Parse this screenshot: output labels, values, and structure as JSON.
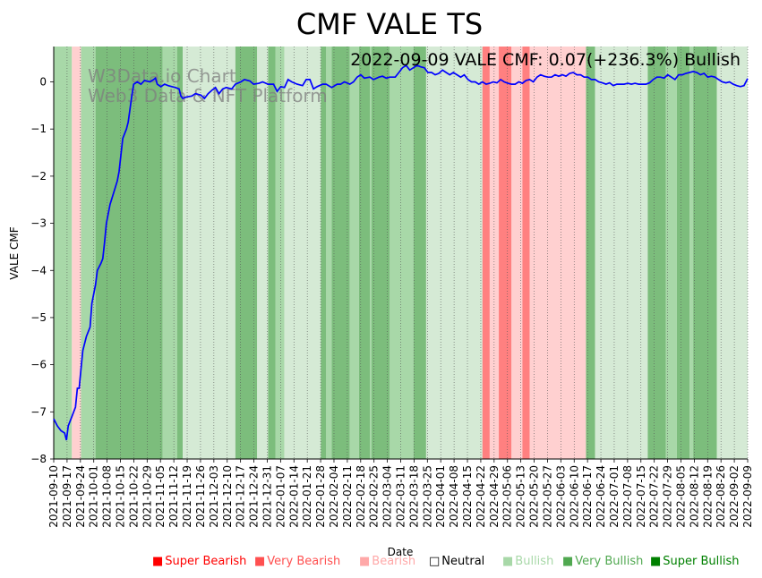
{
  "chart_data": {
    "type": "line",
    "title": "CMF VALE TS",
    "annotation": "2022-09-09 VALE CMF: 0.07(+236.3%) Bullish",
    "watermark": [
      "W3Data.io Chart",
      "Web3 Data & NFT Platform"
    ],
    "xlabel": "Date",
    "ylabel": "VALE CMF",
    "ylim": [
      -8.0,
      0.75
    ],
    "yticks": [
      0,
      -1,
      -2,
      -3,
      -4,
      -5,
      -6,
      -7,
      -8
    ],
    "xlim_days": [
      0,
      364
    ],
    "x_tick_start": "2021-09-10",
    "x_tick_labels": [
      "2021-09-10",
      "2021-09-17",
      "2021-09-24",
      "2021-10-01",
      "2021-10-08",
      "2021-10-15",
      "2021-10-22",
      "2021-10-29",
      "2021-11-05",
      "2021-11-12",
      "2021-11-19",
      "2021-11-26",
      "2021-12-03",
      "2021-12-10",
      "2021-12-17",
      "2021-12-24",
      "2021-12-31",
      "2022-01-07",
      "2022-01-14",
      "2022-01-21",
      "2022-01-28",
      "2022-02-04",
      "2022-02-11",
      "2022-02-18",
      "2022-02-25",
      "2022-03-04",
      "2022-03-11",
      "2022-03-18",
      "2022-03-25",
      "2022-04-01",
      "2022-04-08",
      "2022-04-15",
      "2022-04-22",
      "2022-04-29",
      "2022-05-06",
      "2022-05-13",
      "2022-05-20",
      "2022-05-27",
      "2022-06-03",
      "2022-06-10",
      "2022-06-17",
      "2022-06-24",
      "2022-07-01",
      "2022-07-08",
      "2022-07-15",
      "2022-07-22",
      "2022-07-29",
      "2022-08-05",
      "2022-08-12",
      "2022-08-19",
      "2022-08-26",
      "2022-09-02",
      "2022-09-09"
    ],
    "series": [
      {
        "name": "VALE CMF",
        "color": "#0000ff",
        "points": [
          [
            0,
            -7.15
          ],
          [
            2,
            -7.3
          ],
          [
            4,
            -7.4
          ],
          [
            6,
            -7.45
          ],
          [
            7,
            -7.6
          ],
          [
            8,
            -7.3
          ],
          [
            10,
            -7.1
          ],
          [
            12,
            -6.9
          ],
          [
            13,
            -6.5
          ],
          [
            14,
            -6.5
          ],
          [
            15,
            -6.1
          ],
          [
            16,
            -5.7
          ],
          [
            18,
            -5.4
          ],
          [
            20,
            -5.2
          ],
          [
            21,
            -4.7
          ],
          [
            23,
            -4.3
          ],
          [
            24,
            -4.0
          ],
          [
            26,
            -3.85
          ],
          [
            27,
            -3.75
          ],
          [
            28,
            -3.4
          ],
          [
            29,
            -3.0
          ],
          [
            31,
            -2.6
          ],
          [
            33,
            -2.35
          ],
          [
            35,
            -2.1
          ],
          [
            36,
            -1.9
          ],
          [
            38,
            -1.2
          ],
          [
            40,
            -1.0
          ],
          [
            41,
            -0.85
          ],
          [
            43,
            -0.3
          ],
          [
            44,
            -0.05
          ],
          [
            46,
            0.0
          ],
          [
            48,
            -0.05
          ],
          [
            50,
            0.03
          ],
          [
            53,
            0.0
          ],
          [
            55,
            0.05
          ],
          [
            56,
            0.08
          ],
          [
            57,
            -0.05
          ],
          [
            59,
            -0.1
          ],
          [
            61,
            -0.05
          ],
          [
            63,
            -0.08
          ],
          [
            65,
            -0.1
          ],
          [
            67,
            -0.12
          ],
          [
            69,
            -0.15
          ],
          [
            70,
            -0.3
          ],
          [
            71,
            -0.35
          ],
          [
            73,
            -0.32
          ],
          [
            76,
            -0.3
          ],
          [
            78,
            -0.25
          ],
          [
            81,
            -0.28
          ],
          [
            83,
            -0.35
          ],
          [
            85,
            -0.25
          ],
          [
            87,
            -0.18
          ],
          [
            89,
            -0.12
          ],
          [
            91,
            -0.25
          ],
          [
            93,
            -0.15
          ],
          [
            95,
            -0.12
          ],
          [
            98,
            -0.15
          ],
          [
            100,
            -0.05
          ],
          [
            103,
            0.0
          ],
          [
            105,
            0.05
          ],
          [
            108,
            0.02
          ],
          [
            110,
            -0.05
          ],
          [
            113,
            -0.03
          ],
          [
            115,
            0.0
          ],
          [
            118,
            -0.05
          ],
          [
            121,
            -0.05
          ],
          [
            123,
            -0.2
          ],
          [
            125,
            -0.1
          ],
          [
            127,
            -0.12
          ],
          [
            129,
            0.05
          ],
          [
            131,
            0.0
          ],
          [
            134,
            -0.05
          ],
          [
            137,
            -0.08
          ],
          [
            139,
            0.05
          ],
          [
            141,
            0.05
          ],
          [
            143,
            -0.15
          ],
          [
            145,
            -0.1
          ],
          [
            148,
            -0.05
          ],
          [
            150,
            -0.05
          ],
          [
            153,
            -0.12
          ],
          [
            156,
            -0.05
          ],
          [
            158,
            -0.05
          ],
          [
            160,
            0.0
          ],
          [
            163,
            -0.05
          ],
          [
            165,
            0.0
          ],
          [
            167,
            0.1
          ],
          [
            169,
            0.15
          ],
          [
            171,
            0.08
          ],
          [
            174,
            0.1
          ],
          [
            176,
            0.05
          ],
          [
            179,
            0.1
          ],
          [
            181,
            0.12
          ],
          [
            183,
            0.08
          ],
          [
            185,
            0.1
          ],
          [
            188,
            0.1
          ],
          [
            190,
            0.2
          ],
          [
            192,
            0.3
          ],
          [
            194,
            0.35
          ],
          [
            196,
            0.25
          ],
          [
            198,
            0.3
          ],
          [
            200,
            0.35
          ],
          [
            202,
            0.32
          ],
          [
            204,
            0.3
          ],
          [
            206,
            0.2
          ],
          [
            208,
            0.2
          ],
          [
            210,
            0.15
          ],
          [
            212,
            0.18
          ],
          [
            214,
            0.25
          ],
          [
            216,
            0.2
          ],
          [
            218,
            0.15
          ],
          [
            220,
            0.2
          ],
          [
            222,
            0.15
          ],
          [
            224,
            0.1
          ],
          [
            226,
            0.15
          ],
          [
            228,
            0.05
          ],
          [
            230,
            0.0
          ],
          [
            232,
            0.0
          ],
          [
            234,
            -0.05
          ],
          [
            236,
            0.0
          ],
          [
            238,
            -0.05
          ],
          [
            240,
            -0.03
          ],
          [
            242,
            0.0
          ],
          [
            244,
            -0.02
          ],
          [
            246,
            0.05
          ],
          [
            248,
            0.0
          ],
          [
            250,
            -0.03
          ],
          [
            252,
            -0.05
          ],
          [
            254,
            -0.05
          ],
          [
            256,
            0.0
          ],
          [
            258,
            -0.03
          ],
          [
            260,
            0.03
          ],
          [
            262,
            0.05
          ],
          [
            264,
            0.0
          ],
          [
            266,
            0.1
          ],
          [
            268,
            0.15
          ],
          [
            270,
            0.12
          ],
          [
            272,
            0.1
          ],
          [
            274,
            0.1
          ],
          [
            276,
            0.15
          ],
          [
            278,
            0.12
          ],
          [
            280,
            0.15
          ],
          [
            282,
            0.12
          ],
          [
            284,
            0.18
          ],
          [
            286,
            0.2
          ],
          [
            288,
            0.15
          ],
          [
            290,
            0.15
          ],
          [
            292,
            0.1
          ],
          [
            294,
            0.1
          ],
          [
            296,
            0.05
          ],
          [
            298,
            0.05
          ],
          [
            300,
            0.0
          ],
          [
            302,
            -0.02
          ],
          [
            304,
            -0.05
          ],
          [
            306,
            -0.02
          ],
          [
            308,
            -0.08
          ],
          [
            310,
            -0.05
          ],
          [
            312,
            -0.05
          ],
          [
            314,
            -0.05
          ],
          [
            316,
            -0.03
          ],
          [
            318,
            -0.05
          ],
          [
            320,
            -0.03
          ],
          [
            322,
            -0.05
          ],
          [
            324,
            -0.05
          ],
          [
            326,
            -0.05
          ],
          [
            328,
            -0.02
          ],
          [
            330,
            0.05
          ],
          [
            332,
            0.1
          ],
          [
            334,
            0.1
          ],
          [
            336,
            0.08
          ],
          [
            338,
            0.15
          ],
          [
            340,
            0.1
          ],
          [
            342,
            0.05
          ],
          [
            344,
            0.15
          ],
          [
            346,
            0.15
          ],
          [
            348,
            0.18
          ],
          [
            350,
            0.2
          ],
          [
            352,
            0.22
          ],
          [
            354,
            0.2
          ],
          [
            356,
            0.15
          ],
          [
            358,
            0.18
          ],
          [
            360,
            0.1
          ],
          [
            362,
            0.12
          ],
          [
            364,
            0.1
          ],
          [
            366,
            0.05
          ],
          [
            368,
            0.0
          ],
          [
            370,
            -0.02
          ],
          [
            372,
            0.0
          ],
          [
            374,
            -0.05
          ],
          [
            376,
            -0.08
          ],
          [
            378,
            -0.1
          ],
          [
            380,
            -0.08
          ],
          [
            382,
            0.07
          ]
        ]
      }
    ],
    "bands": [
      {
        "start": 0,
        "end": 10,
        "cat": "bullish"
      },
      {
        "start": 10,
        "end": 15,
        "cat": "bearish"
      },
      {
        "start": 15,
        "end": 23,
        "cat": "bullish"
      },
      {
        "start": 23,
        "end": 60,
        "cat": "very_bullish"
      },
      {
        "start": 60,
        "end": 68,
        "cat": "bullish"
      },
      {
        "start": 68,
        "end": 71,
        "cat": "very_bullish"
      },
      {
        "start": 71,
        "end": 100,
        "cat": "neutral"
      },
      {
        "start": 100,
        "end": 112,
        "cat": "very_bullish"
      },
      {
        "start": 112,
        "end": 118,
        "cat": "neutral"
      },
      {
        "start": 118,
        "end": 122,
        "cat": "very_bullish"
      },
      {
        "start": 122,
        "end": 127,
        "cat": "bullish"
      },
      {
        "start": 127,
        "end": 147,
        "cat": "neutral"
      },
      {
        "start": 147,
        "end": 150,
        "cat": "very_bullish"
      },
      {
        "start": 150,
        "end": 153,
        "cat": "bullish"
      },
      {
        "start": 153,
        "end": 163,
        "cat": "very_bullish"
      },
      {
        "start": 163,
        "end": 168,
        "cat": "bullish"
      },
      {
        "start": 168,
        "end": 174,
        "cat": "very_bullish"
      },
      {
        "start": 174,
        "end": 175,
        "cat": "bullish"
      },
      {
        "start": 175,
        "end": 185,
        "cat": "very_bullish"
      },
      {
        "start": 185,
        "end": 198,
        "cat": "bullish"
      },
      {
        "start": 198,
        "end": 205,
        "cat": "very_bullish"
      },
      {
        "start": 205,
        "end": 236,
        "cat": "neutral"
      },
      {
        "start": 236,
        "end": 240,
        "cat": "very_bearish"
      },
      {
        "start": 240,
        "end": 245,
        "cat": "bearish"
      },
      {
        "start": 245,
        "end": 252,
        "cat": "very_bearish"
      },
      {
        "start": 252,
        "end": 258,
        "cat": "bearish"
      },
      {
        "start": 258,
        "end": 262,
        "cat": "very_bearish"
      },
      {
        "start": 262,
        "end": 293,
        "cat": "bearish"
      },
      {
        "start": 293,
        "end": 298,
        "cat": "very_bullish"
      },
      {
        "start": 298,
        "end": 327,
        "cat": "neutral"
      },
      {
        "start": 327,
        "end": 337,
        "cat": "very_bullish"
      },
      {
        "start": 337,
        "end": 343,
        "cat": "bullish"
      },
      {
        "start": 343,
        "end": 350,
        "cat": "very_bullish"
      },
      {
        "start": 350,
        "end": 352,
        "cat": "bullish"
      },
      {
        "start": 352,
        "end": 365,
        "cat": "very_bullish"
      },
      {
        "start": 365,
        "end": 382,
        "cat": "neutral"
      }
    ],
    "legend": [
      {
        "label": "Super Bearish",
        "color": "#ff0000"
      },
      {
        "label": "Very Bearish",
        "color": "#ff5050"
      },
      {
        "label": "Bearish",
        "color": "#ffa8a8"
      },
      {
        "label": "Neutral",
        "color": "#000000",
        "hollow": true
      },
      {
        "label": "Bullish",
        "color": "#a8d8a8"
      },
      {
        "label": "Very Bullish",
        "color": "#50a850"
      },
      {
        "label": "Super Bullish",
        "color": "#008000"
      }
    ],
    "band_colors": {
      "super_bearish": "#ff4040",
      "very_bearish": "#ff8080",
      "bearish": "#ffd0d0",
      "neutral": "#d5ead5",
      "bullish": "#a8d8a8",
      "very_bullish": "#7cbd7c",
      "super_bullish": "#3c9b3c"
    },
    "legend_placement": "bottom-right"
  }
}
